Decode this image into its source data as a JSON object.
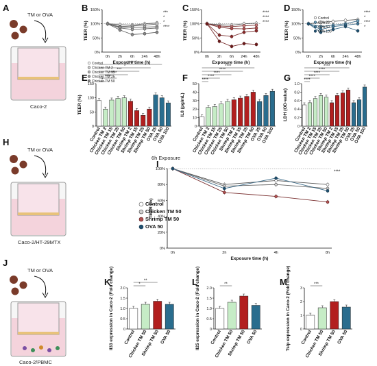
{
  "panels": {
    "A": {
      "letter": "A",
      "label": "TM or OVA",
      "cell": "Caco-2"
    },
    "H": {
      "letter": "H",
      "label": "TM or OVA",
      "cell": "Caco-2/HT-29MTX"
    },
    "J": {
      "letter": "J",
      "label": "TM or OVA",
      "cell": "Caco-2/PBMC"
    },
    "exposure_caption": "6h Exposure"
  },
  "colors": {
    "control": "#ffffff",
    "chicken_tm": "#c6ecc6",
    "shrimp_tm": "#b21f1f",
    "ova": "#2a6d8e",
    "pink": "#f3a7c7"
  },
  "chart_data": [
    {
      "id": "B",
      "letter": "B",
      "type": "line",
      "ylabel": "TEER (%)",
      "xlabel": "Exposure time (h)",
      "categories": [
        "0h",
        "2h",
        "6h",
        "24h",
        "48h"
      ],
      "ylim": [
        0,
        150
      ],
      "yticks": [
        "0%",
        "50%",
        "100%",
        "150%"
      ],
      "series": [
        {
          "name": "Control",
          "values": [
            100,
            97,
            95,
            100,
            103
          ]
        },
        {
          "name": "Chicken TM 2",
          "values": [
            100,
            90,
            92,
            95,
            99
          ]
        },
        {
          "name": "Chicken TM 15",
          "values": [
            100,
            88,
            87,
            88,
            90
          ]
        },
        {
          "name": "Chicken TM 25",
          "values": [
            100,
            85,
            80,
            82,
            85
          ]
        },
        {
          "name": "Chicken TM 50",
          "values": [
            100,
            78,
            62,
            65,
            70
          ]
        }
      ],
      "sig": [
        "***",
        "*",
        "*",
        "****"
      ]
    },
    {
      "id": "C",
      "letter": "C",
      "type": "line",
      "ylabel": "TEER (%)",
      "xlabel": "Exposure time (h)",
      "categories": [
        "0h",
        "2h",
        "6h",
        "24h",
        "48h"
      ],
      "ylim": [
        0,
        150
      ],
      "yticks": [
        "0%",
        "50%",
        "100%",
        "150%"
      ],
      "series": [
        {
          "name": "Control",
          "values": [
            100,
            97,
            95,
            100,
            102
          ]
        },
        {
          "name": "Shrimp TM 2",
          "values": [
            100,
            92,
            90,
            93,
            95
          ]
        },
        {
          "name": "Shrimp TM 15",
          "values": [
            100,
            88,
            83,
            82,
            85
          ]
        },
        {
          "name": "Shrimp TM 25",
          "values": [
            100,
            60,
            55,
            70,
            75
          ]
        },
        {
          "name": "Shrimp TM 50",
          "values": [
            100,
            38,
            20,
            30,
            27
          ]
        }
      ],
      "sig": [
        "****",
        "****",
        "****"
      ]
    },
    {
      "id": "D",
      "letter": "D",
      "type": "line",
      "ylabel": "TEER (%)",
      "xlabel": "Exposure time (h)",
      "categories": [
        "0h",
        "2h",
        "6h",
        "24h",
        "48h"
      ],
      "ylim": [
        0,
        150
      ],
      "yticks": [
        "0%",
        "50%",
        "100%",
        "150%"
      ],
      "series": [
        {
          "name": "Control",
          "values": [
            100,
            105,
            108,
            112,
            115
          ]
        },
        {
          "name": "OVA 25",
          "values": [
            100,
            90,
            95,
            100,
            110
          ]
        },
        {
          "name": "OVA 50",
          "values": [
            100,
            80,
            90,
            95,
            100
          ]
        },
        {
          "name": "OVA 100",
          "values": [
            100,
            70,
            80,
            90,
            75
          ]
        }
      ],
      "sig": [
        "****",
        "*",
        "****",
        "*"
      ]
    },
    {
      "id": "E",
      "letter": "E",
      "type": "bar",
      "ylabel": "TEER (%)",
      "ylim": [
        0,
        150
      ],
      "yticks": [
        "0",
        "50",
        "100",
        "150"
      ],
      "categories": [
        "Control",
        "Chicken TM 2",
        "Chicken TM 15",
        "Chicken TM 25",
        "Chicken TM 50",
        "Shrimp TM 2",
        "Shrimp TM 15",
        "Shrimp TM 25",
        "Shrimp TM 50",
        "OVA 25",
        "OVA 50",
        "OVA 100"
      ],
      "values": [
        90,
        60,
        92,
        98,
        100,
        88,
        55,
        38,
        60,
        110,
        100,
        82
      ],
      "sig": [
        "*",
        "****",
        "****",
        "***",
        "*",
        "****"
      ]
    },
    {
      "id": "F",
      "letter": "F",
      "type": "bar",
      "ylabel": "IL8 (pg/mL)",
      "ylim": [
        0,
        50
      ],
      "yticks": [
        "0",
        "10",
        "20",
        "30",
        "40",
        "50"
      ],
      "categories": [
        "Control",
        "Chicken TM 2",
        "Chicken TM 15",
        "Chicken TM 25",
        "Chicken TM 50",
        "Shrimp TM 2",
        "Shrimp TM 15",
        "Shrimp TM 25",
        "Shrimp TM 50",
        "OVA 25",
        "OVA 50",
        "OVA 100"
      ],
      "values": [
        11,
        22,
        23,
        26,
        29,
        31,
        33,
        35,
        40,
        29,
        36,
        41
      ],
      "sig": [
        "****",
        "****",
        "****",
        "****",
        "****"
      ]
    },
    {
      "id": "G",
      "letter": "G",
      "type": "bar",
      "ylabel": "LDH (OD-value)",
      "ylim": [
        0,
        1.0
      ],
      "yticks": [
        "0",
        "0.2",
        "0.4",
        "0.6",
        "0.8",
        "1.0"
      ],
      "categories": [
        "Control",
        "Chicken TM 2",
        "Chicken TM 15",
        "Chicken TM 25",
        "Chicken TM 50",
        "Shrimp TM 2",
        "Shrimp TM 15",
        "Shrimp TM 25",
        "Shrimp TM 50",
        "OVA 25",
        "OVA 50",
        "OVA 100"
      ],
      "values": [
        0.5,
        0.55,
        0.65,
        0.72,
        0.68,
        0.55,
        0.72,
        0.78,
        0.85,
        0.55,
        0.62,
        0.92
      ],
      "sig": [
        "****",
        "****",
        "****",
        "****",
        "****"
      ]
    },
    {
      "id": "I",
      "letter": "I",
      "type": "line",
      "ylabel": "TEER (%)",
      "xlabel": "Exposure time (h)",
      "categories": [
        "0h",
        "2h",
        "4h",
        "8h"
      ],
      "ylim": [
        0,
        100
      ],
      "yticks": [
        "0%",
        "20%",
        "40%",
        "60%",
        "80%",
        "100%"
      ],
      "series": [
        {
          "name": "Control",
          "values": [
            100,
            80,
            85,
            80
          ]
        },
        {
          "name": "Chicken TM 50",
          "values": [
            100,
            78,
            80,
            75
          ]
        },
        {
          "name": "Shrimp TM 50",
          "values": [
            100,
            70,
            65,
            58
          ]
        },
        {
          "name": "OVA 50",
          "values": [
            100,
            75,
            88,
            72
          ]
        }
      ],
      "sig": [
        "****"
      ]
    },
    {
      "id": "K",
      "letter": "K",
      "type": "bar",
      "ylabel": "Il33 expression in Caco-2 (Fold change)",
      "ylim": [
        0,
        2.0
      ],
      "yticks": [
        "0",
        "0.5",
        "1.0",
        "1.5",
        "2.0"
      ],
      "categories": [
        "Control",
        "Chicken TM 50",
        "Shrimp TM 50",
        "OVA 50"
      ],
      "values": [
        1.0,
        1.2,
        1.35,
        1.2
      ],
      "sig": [
        "*",
        "**"
      ]
    },
    {
      "id": "L",
      "letter": "L",
      "type": "bar",
      "ylabel": "Il25 expression in Caco-2 (Fold change)",
      "ylim": [
        0,
        2.0
      ],
      "yticks": [
        "0",
        "0.5",
        "1.0",
        "1.5",
        "2.0"
      ],
      "categories": [
        "Control",
        "Chicken TM 50",
        "Shrimp TM 50",
        "OVA 50"
      ],
      "values": [
        1.0,
        1.3,
        1.6,
        1.15
      ],
      "sig": [
        "**"
      ]
    },
    {
      "id": "M",
      "letter": "M",
      "type": "bar",
      "ylabel": "Tslp expression in Caco-2 (Fold change)",
      "ylim": [
        0,
        3
      ],
      "yticks": [
        "0",
        "1",
        "2",
        "3"
      ],
      "categories": [
        "Control",
        "Chicken TM 50",
        "Shrimp TM 50",
        "OVA 50"
      ],
      "values": [
        1.0,
        1.55,
        2.0,
        1.6
      ],
      "sig": [
        "***"
      ]
    }
  ]
}
